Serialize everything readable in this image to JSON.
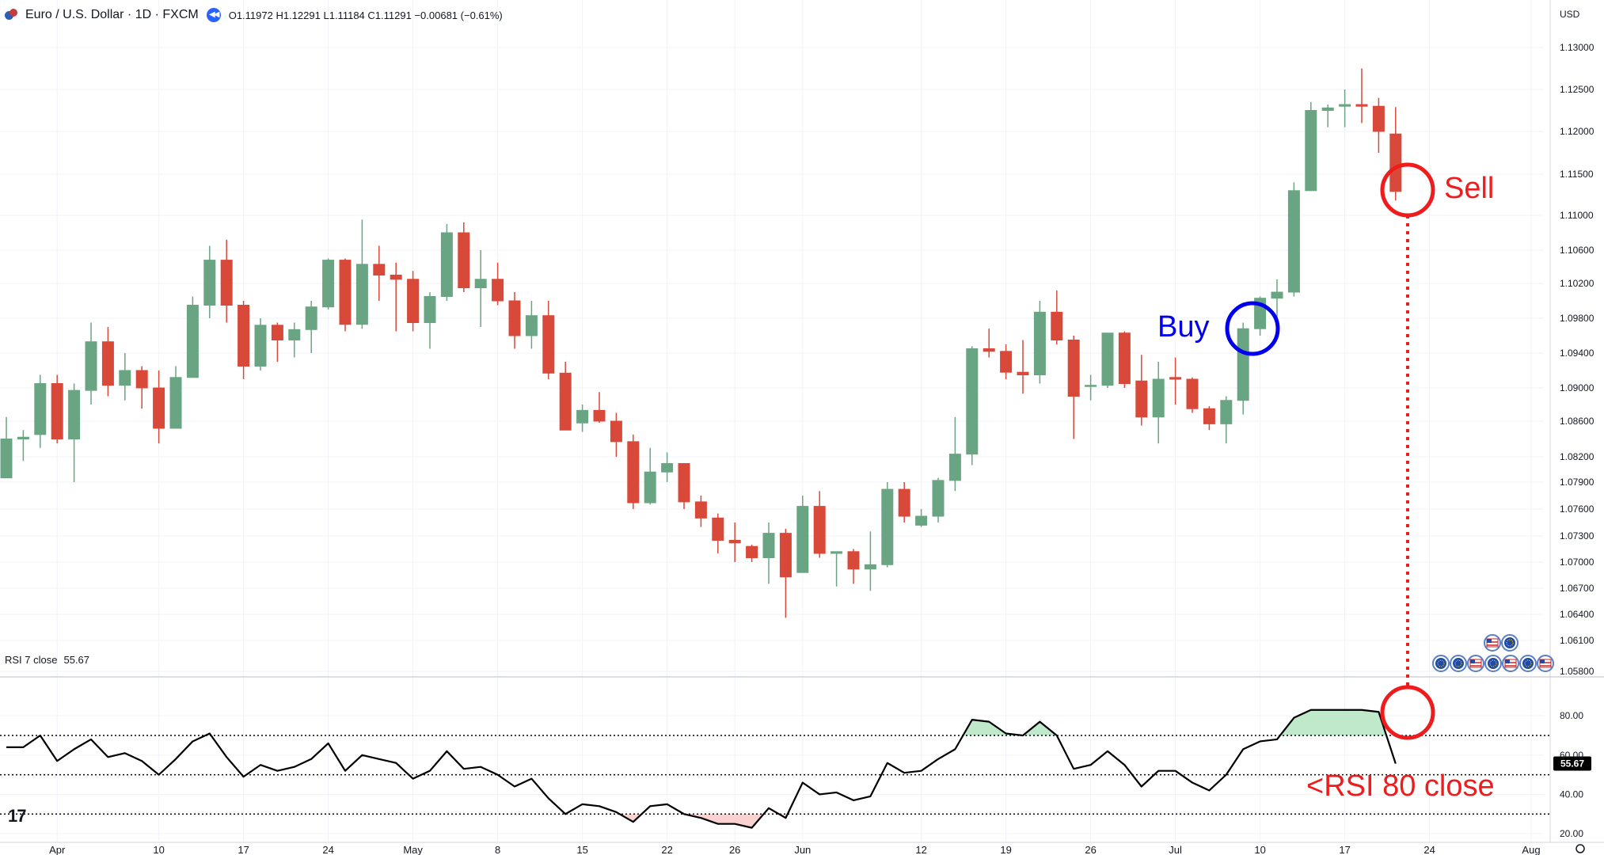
{
  "header": {
    "symbol_title": "Euro / U.S. Dollar · 1D · FXCM",
    "ohlc": {
      "open": "O1.11972",
      "high": "H1.12291",
      "low": "L1.11184",
      "close": "C1.11291",
      "change": "−0.00681 (−0.61%)"
    },
    "currency": "USD"
  },
  "rsi_header": {
    "label": "RSI 7 close",
    "value": "55.67"
  },
  "annotations": {
    "buy": "Buy",
    "sell": "Sell",
    "rsi_note": "<RSI 80 close",
    "buy_color": "#0000ee",
    "sell_color": "#ee1c1c"
  },
  "colors": {
    "up": "#6aa583",
    "down": "#d9493a",
    "grid": "#f0f3fa",
    "rsi_line": "#000000",
    "rsi_fill_high": "#b9e6c5",
    "rsi_fill_low": "#f9cccc"
  },
  "chart_data": [
    {
      "type": "candlestick",
      "title": "Euro / U.S. Dollar · 1D · FXCM",
      "ylabel": "USD",
      "y_ticks": [
        1.058,
        1.061,
        1.064,
        1.067,
        1.07,
        1.073,
        1.076,
        1.079,
        1.082,
        1.086,
        1.09,
        1.094,
        1.098,
        1.102,
        1.106,
        1.11,
        1.115,
        1.12,
        1.125,
        1.13
      ],
      "y_tick_labels": [
        "1.05800",
        "1.06100",
        "1.06400",
        "1.06700",
        "1.07000",
        "1.07300",
        "1.07600",
        "1.07900",
        "1.08200",
        "1.08600",
        "1.09000",
        "1.09400",
        "1.09800",
        "1.10200",
        "1.10600",
        "1.11000",
        "1.11500",
        "1.12000",
        "1.12500",
        "1.13000"
      ],
      "x_tick_labels": [
        {
          "label": "Apr",
          "index": 3
        },
        {
          "label": "10",
          "index": 9
        },
        {
          "label": "17",
          "index": 14
        },
        {
          "label": "24",
          "index": 19
        },
        {
          "label": "May",
          "index": 24
        },
        {
          "label": "8",
          "index": 29
        },
        {
          "label": "15",
          "index": 34
        },
        {
          "label": "22",
          "index": 39
        },
        {
          "label": "26",
          "index": 43
        },
        {
          "label": "Jun",
          "index": 47
        },
        {
          "label": "12",
          "index": 54
        },
        {
          "label": "19",
          "index": 59
        },
        {
          "label": "26",
          "index": 64
        },
        {
          "label": "Jul",
          "index": 69
        },
        {
          "label": "10",
          "index": 74
        },
        {
          "label": "17",
          "index": 79
        },
        {
          "label": "24",
          "index": 84
        },
        {
          "label": "Aug",
          "index": 90
        }
      ],
      "candles": [
        {
          "o": 1.0795,
          "h": 1.0865,
          "l": 1.0795,
          "c": 1.084
        },
        {
          "o": 1.084,
          "h": 1.085,
          "l": 1.0815,
          "c": 1.0842
        },
        {
          "o": 1.0845,
          "h": 1.0915,
          "l": 1.083,
          "c": 1.0905
        },
        {
          "o": 1.0905,
          "h": 1.0915,
          "l": 1.0835,
          "c": 1.084
        },
        {
          "o": 1.084,
          "h": 1.0905,
          "l": 1.079,
          "c": 1.0897
        },
        {
          "o": 1.0897,
          "h": 1.0975,
          "l": 1.088,
          "c": 1.0953
        },
        {
          "o": 1.0953,
          "h": 1.097,
          "l": 1.089,
          "c": 1.0903
        },
        {
          "o": 1.0903,
          "h": 1.094,
          "l": 1.0885,
          "c": 1.092
        },
        {
          "o": 1.092,
          "h": 1.0925,
          "l": 1.0875,
          "c": 1.09
        },
        {
          "o": 1.09,
          "h": 1.092,
          "l": 1.0835,
          "c": 1.0852
        },
        {
          "o": 1.0852,
          "h": 1.0925,
          "l": 1.0852,
          "c": 1.0912
        },
        {
          "o": 1.0912,
          "h": 1.1005,
          "l": 1.0912,
          "c": 1.0995
        },
        {
          "o": 1.0995,
          "h": 1.1065,
          "l": 1.098,
          "c": 1.1048
        },
        {
          "o": 1.1048,
          "h": 1.1072,
          "l": 1.0975,
          "c": 1.0995
        },
        {
          "o": 1.0995,
          "h": 1.1,
          "l": 1.091,
          "c": 1.0925
        },
        {
          "o": 1.0925,
          "h": 1.098,
          "l": 1.092,
          "c": 1.0972
        },
        {
          "o": 1.0972,
          "h": 1.0975,
          "l": 1.093,
          "c": 1.0955
        },
        {
          "o": 1.0955,
          "h": 1.0975,
          "l": 1.0935,
          "c": 1.0967
        },
        {
          "o": 1.0967,
          "h": 1.1,
          "l": 1.094,
          "c": 1.0993
        },
        {
          "o": 1.0993,
          "h": 1.105,
          "l": 1.099,
          "c": 1.1048
        },
        {
          "o": 1.1048,
          "h": 1.105,
          "l": 1.0965,
          "c": 1.0973
        },
        {
          "o": 1.0973,
          "h": 1.1095,
          "l": 1.0968,
          "c": 1.1043
        },
        {
          "o": 1.1043,
          "h": 1.1065,
          "l": 1.1,
          "c": 1.103
        },
        {
          "o": 1.103,
          "h": 1.1045,
          "l": 1.0965,
          "c": 1.1025
        },
        {
          "o": 1.1025,
          "h": 1.1035,
          "l": 1.0965,
          "c": 1.0975
        },
        {
          "o": 1.0975,
          "h": 1.101,
          "l": 1.0945,
          "c": 1.1005
        },
        {
          "o": 1.1005,
          "h": 1.109,
          "l": 1.1,
          "c": 1.108
        },
        {
          "o": 1.108,
          "h": 1.1092,
          "l": 1.101,
          "c": 1.1015
        },
        {
          "o": 1.1015,
          "h": 1.106,
          "l": 1.097,
          "c": 1.1025
        },
        {
          "o": 1.1025,
          "h": 1.1045,
          "l": 1.0995,
          "c": 1.1
        },
        {
          "o": 1.1,
          "h": 1.101,
          "l": 1.0945,
          "c": 1.096
        },
        {
          "o": 1.096,
          "h": 1.1,
          "l": 1.0945,
          "c": 1.0983
        },
        {
          "o": 1.0983,
          "h": 1.1,
          "l": 1.091,
          "c": 1.0917
        },
        {
          "o": 1.0917,
          "h": 1.093,
          "l": 1.085,
          "c": 1.085
        },
        {
          "o": 1.0858,
          "h": 1.088,
          "l": 1.0848,
          "c": 1.0873
        },
        {
          "o": 1.0873,
          "h": 1.0895,
          "l": 1.0858,
          "c": 1.086
        },
        {
          "o": 1.086,
          "h": 1.087,
          "l": 1.082,
          "c": 1.0837
        },
        {
          "o": 1.0837,
          "h": 1.0845,
          "l": 1.076,
          "c": 1.0767
        },
        {
          "o": 1.0767,
          "h": 1.083,
          "l": 1.0765,
          "c": 1.0802
        },
        {
          "o": 1.0802,
          "h": 1.0825,
          "l": 1.079,
          "c": 1.0812
        },
        {
          "o": 1.0812,
          "h": 1.0812,
          "l": 1.076,
          "c": 1.0768
        },
        {
          "o": 1.0768,
          "h": 1.0775,
          "l": 1.074,
          "c": 1.075
        },
        {
          "o": 1.075,
          "h": 1.0755,
          "l": 1.071,
          "c": 1.0725
        },
        {
          "o": 1.0725,
          "h": 1.0745,
          "l": 1.07,
          "c": 1.0722
        },
        {
          "o": 1.0718,
          "h": 1.072,
          "l": 1.07,
          "c": 1.0705
        },
        {
          "o": 1.0705,
          "h": 1.0745,
          "l": 1.0675,
          "c": 1.0733
        },
        {
          "o": 1.0733,
          "h": 1.0738,
          "l": 1.0636,
          "c": 1.0683
        },
        {
          "o": 1.0688,
          "h": 1.0775,
          "l": 1.0688,
          "c": 1.0763
        },
        {
          "o": 1.0763,
          "h": 1.078,
          "l": 1.0705,
          "c": 1.071
        },
        {
          "o": 1.071,
          "h": 1.0712,
          "l": 1.0672,
          "c": 1.0712
        },
        {
          "o": 1.0712,
          "h": 1.0715,
          "l": 1.0675,
          "c": 1.0692
        },
        {
          "o": 1.0692,
          "h": 1.0735,
          "l": 1.0667,
          "c": 1.0697
        },
        {
          "o": 1.0697,
          "h": 1.079,
          "l": 1.0694,
          "c": 1.0782
        },
        {
          "o": 1.0782,
          "h": 1.079,
          "l": 1.0745,
          "c": 1.0752
        },
        {
          "o": 1.0742,
          "h": 1.076,
          "l": 1.074,
          "c": 1.0752
        },
        {
          "o": 1.0752,
          "h": 1.0795,
          "l": 1.0745,
          "c": 1.0792
        },
        {
          "o": 1.0792,
          "h": 1.0865,
          "l": 1.078,
          "c": 1.0823
        },
        {
          "o": 1.0823,
          "h": 1.0948,
          "l": 1.081,
          "c": 1.0945
        },
        {
          "o": 1.0945,
          "h": 1.0968,
          "l": 1.0935,
          "c": 1.0942
        },
        {
          "o": 1.0942,
          "h": 1.095,
          "l": 1.091,
          "c": 1.0918
        },
        {
          "o": 1.0918,
          "h": 1.0955,
          "l": 1.0893,
          "c": 1.0915
        },
        {
          "o": 1.0915,
          "h": 1.1,
          "l": 1.0905,
          "c": 1.0987
        },
        {
          "o": 1.0987,
          "h": 1.1012,
          "l": 1.095,
          "c": 1.0955
        },
        {
          "o": 1.0955,
          "h": 1.096,
          "l": 1.084,
          "c": 1.089
        },
        {
          "o": 1.0902,
          "h": 1.0915,
          "l": 1.0885,
          "c": 1.0903
        },
        {
          "o": 1.0903,
          "h": 1.0963,
          "l": 1.09,
          "c": 1.0963
        },
        {
          "o": 1.0963,
          "h": 1.0965,
          "l": 1.09,
          "c": 1.0905
        },
        {
          "o": 1.0908,
          "h": 1.0938,
          "l": 1.0855,
          "c": 1.0865
        },
        {
          "o": 1.0865,
          "h": 1.093,
          "l": 1.0835,
          "c": 1.091
        },
        {
          "o": 1.0912,
          "h": 1.0935,
          "l": 1.088,
          "c": 1.091
        },
        {
          "o": 1.091,
          "h": 1.0912,
          "l": 1.087,
          "c": 1.0875
        },
        {
          "o": 1.0875,
          "h": 1.0878,
          "l": 1.085,
          "c": 1.0857
        },
        {
          "o": 1.0857,
          "h": 1.089,
          "l": 1.0835,
          "c": 1.0885
        },
        {
          "o": 1.0885,
          "h": 1.0975,
          "l": 1.0868,
          "c": 1.0968
        },
        {
          "o": 1.0968,
          "h": 1.1005,
          "l": 1.096,
          "c": 1.1003
        },
        {
          "o": 1.1003,
          "h": 1.1025,
          "l": 1.098,
          "c": 1.101
        },
        {
          "o": 1.101,
          "h": 1.114,
          "l": 1.1005,
          "c": 1.113
        },
        {
          "o": 1.113,
          "h": 1.1235,
          "l": 1.113,
          "c": 1.1225
        },
        {
          "o": 1.1225,
          "h": 1.1232,
          "l": 1.1205,
          "c": 1.1228
        },
        {
          "o": 1.123,
          "h": 1.125,
          "l": 1.1205,
          "c": 1.1232
        },
        {
          "o": 1.1232,
          "h": 1.1275,
          "l": 1.121,
          "c": 1.123
        },
        {
          "o": 1.123,
          "h": 1.124,
          "l": 1.1175,
          "c": 1.12
        },
        {
          "o": 1.1197,
          "h": 1.1229,
          "l": 1.1118,
          "c": 1.1129
        }
      ]
    },
    {
      "type": "line",
      "title": "RSI 7 close",
      "last_value": 55.67,
      "ylim": [
        16,
        97
      ],
      "y_ticks": [
        20,
        40,
        60,
        80
      ],
      "y_tick_labels": [
        "20.00",
        "40.00",
        "60.00",
        "80.00"
      ],
      "levels": [
        70,
        50,
        30
      ],
      "values": [
        64,
        64,
        70,
        57,
        63,
        68,
        59,
        61,
        57,
        50,
        58,
        67,
        71,
        59,
        49,
        55,
        52,
        54,
        58,
        66,
        52,
        60,
        58,
        56,
        48,
        52,
        62,
        53,
        54,
        50,
        44,
        48,
        38,
        30,
        35,
        34,
        31,
        26,
        34,
        35,
        30,
        28,
        25,
        25,
        23,
        33,
        28,
        46,
        40,
        41,
        37,
        39,
        56,
        51,
        52,
        58,
        63,
        78,
        77,
        71,
        70,
        77,
        70,
        53,
        55,
        62,
        55,
        44,
        52,
        52,
        46,
        42,
        50,
        63,
        67,
        68,
        79,
        83,
        83,
        83,
        83,
        82,
        55.67
      ]
    }
  ]
}
